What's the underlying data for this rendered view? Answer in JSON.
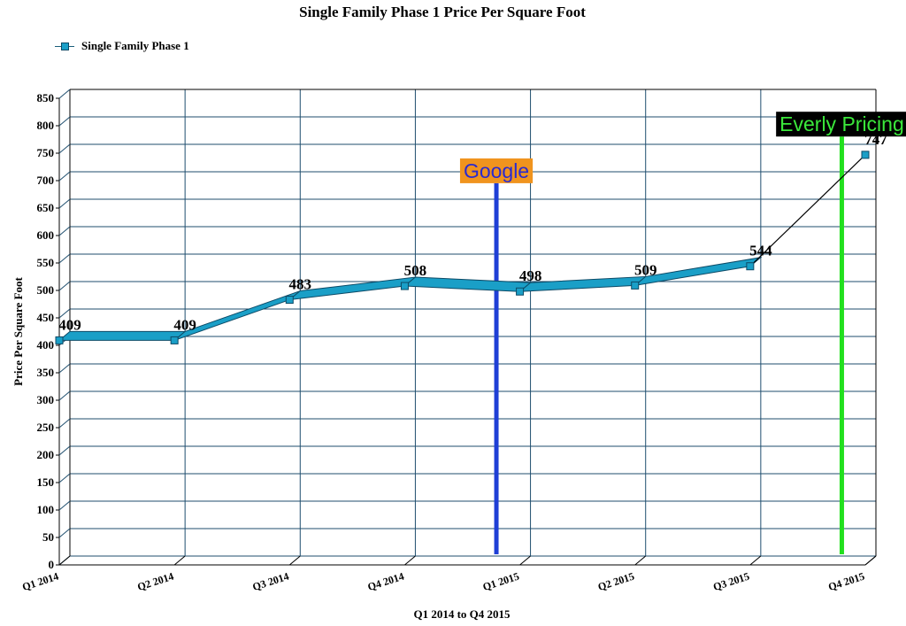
{
  "chart_data": {
    "type": "line",
    "title": "Single Family Phase 1 Price Per Square Foot",
    "xlabel": "Q1 2014 to Q4 2015",
    "ylabel": "Price Per Square Foot",
    "categories": [
      "Q1 2014",
      "Q2 2014",
      "Q3 2014",
      "Q4 2014",
      "Q1 2015",
      "Q2 2015",
      "Q3 2015",
      "Q4 2015"
    ],
    "series": [
      {
        "name": "Single Family Phase 1",
        "values": [
          409,
          409,
          483,
          508,
          498,
          509,
          544,
          747
        ]
      }
    ],
    "data_labels": [
      "409",
      "409",
      "483",
      "508",
      "498",
      "509",
      "544",
      "747"
    ],
    "ylim": [
      0,
      850
    ],
    "yticks": [
      0,
      50,
      100,
      150,
      200,
      250,
      300,
      350,
      400,
      450,
      500,
      550,
      600,
      650,
      700,
      750,
      800,
      850
    ],
    "grid": true,
    "legend_position": "top-left",
    "annotations": [
      {
        "text": "Google",
        "position_quarter": 3.75,
        "line_color": "#1f3fd6",
        "label_bg": "#f0941e",
        "label_color": "#2a2ad0",
        "label_value": 705
      },
      {
        "text": "Everly Pricing",
        "position_quarter": 6.75,
        "line_color": "#22e01e",
        "label_bg": "#000000",
        "label_color": "#3be83b",
        "label_value": 790
      }
    ],
    "colors": {
      "series": "#1a9fc7",
      "series_edge": "#0d4a66",
      "grid": "#1f4e6e"
    }
  }
}
